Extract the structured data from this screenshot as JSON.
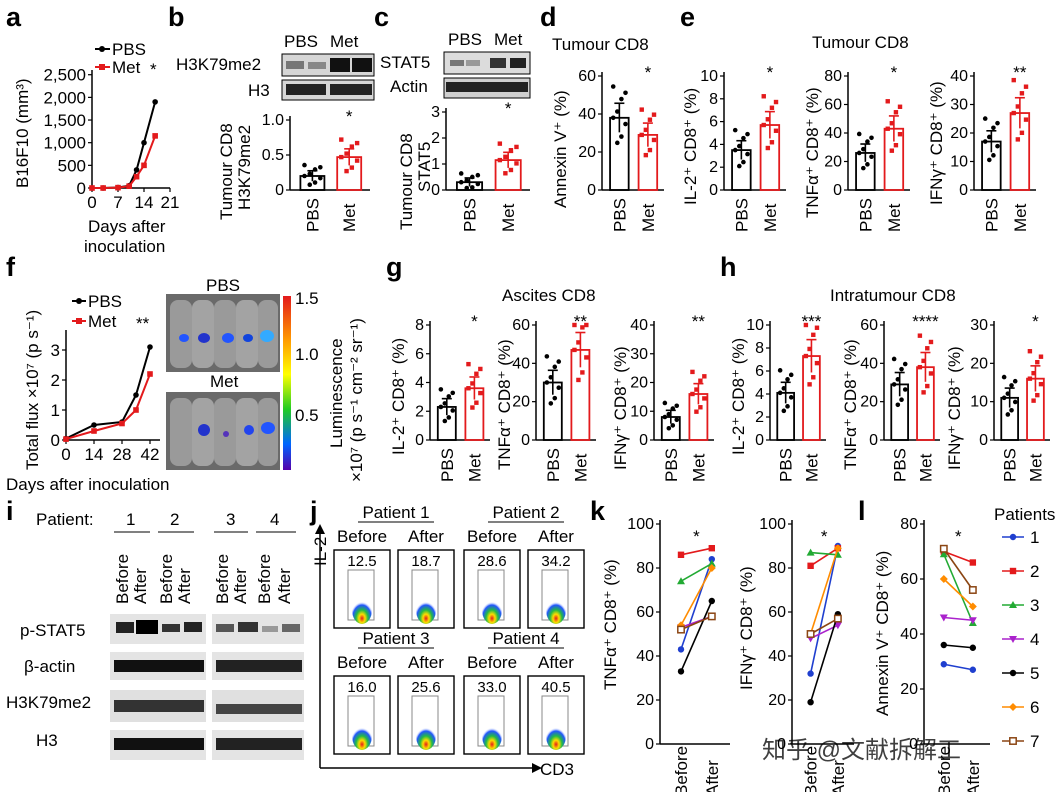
{
  "colors": {
    "pbs": "#000000",
    "met": "#e31a1c"
  },
  "panel_letters": [
    "a",
    "b",
    "c",
    "d",
    "e",
    "f",
    "g",
    "h",
    "i",
    "j",
    "k",
    "l"
  ],
  "panel_a": {
    "ylabel": "B16F10 (mm³)",
    "yticks": [
      "0",
      "500",
      "1,000",
      "1,500",
      "2,000",
      "2,500"
    ],
    "xticks": [
      "0",
      "7",
      "14",
      "21"
    ],
    "xlabel1": "Days after",
    "xlabel2": "inoculation",
    "legend": [
      "PBS",
      "Met"
    ],
    "sig": "*"
  },
  "panel_b": {
    "blot_header": [
      "PBS",
      "Met"
    ],
    "rows": [
      "H3K79me2",
      "H3"
    ],
    "ylabel1": "Tumour CD8",
    "ylabel2": "H3K79me2",
    "yticks": [
      "0",
      "0.5",
      "1.0"
    ],
    "groups": [
      "PBS",
      "Met"
    ],
    "sig": "*"
  },
  "panel_c": {
    "blot_header": [
      "PBS",
      "Met"
    ],
    "rows": [
      "STAT5",
      "Actin"
    ],
    "ylabel1": "Tumour CD8",
    "ylabel2": "STAT5",
    "yticks": [
      "0",
      "1",
      "2",
      "3"
    ],
    "groups": [
      "PBS",
      "Met"
    ],
    "sig": "*"
  },
  "panel_d": {
    "title": "Tumour CD8",
    "ylabel": "Annexin V⁺ (%)",
    "yticks": [
      "0",
      "20",
      "40",
      "60"
    ],
    "groups": [
      "PBS",
      "Met"
    ],
    "sig": "*"
  },
  "panel_e": {
    "title": "Tumour CD8",
    "plots": [
      {
        "ylabel": "IL-2⁺ CD8⁺ (%)",
        "yticks": [
          "0",
          "2",
          "4",
          "6",
          "8",
          "10"
        ],
        "sig": "*"
      },
      {
        "ylabel": "TNFα⁺ CD8⁺ (%)",
        "yticks": [
          "0",
          "20",
          "40",
          "60",
          "80"
        ],
        "sig": "*"
      },
      {
        "ylabel": "IFNγ⁺ CD8⁺ (%)",
        "yticks": [
          "0",
          "10",
          "20",
          "30",
          "40"
        ],
        "sig": "**"
      }
    ],
    "groups": [
      "PBS",
      "Met"
    ]
  },
  "panel_f": {
    "ylabel": "Total flux ×10⁷ (p s⁻¹)",
    "yticks": [
      "0",
      "1",
      "2",
      "3"
    ],
    "xticks": [
      "0",
      "14",
      "28",
      "42"
    ],
    "xlabel": "Days after inoculation",
    "legend": [
      "PBS",
      "Met"
    ],
    "sig": "**",
    "image_labels": [
      "PBS",
      "Met"
    ],
    "colorbar_ticks": [
      "1.5",
      "1.0",
      "0.5"
    ],
    "colorbar_label1": "Luminescence",
    "colorbar_label2": "×10⁷ (p s⁻¹ cm⁻² sr⁻¹)"
  },
  "panel_g": {
    "title": "Ascites CD8",
    "plots": [
      {
        "ylabel": "IL-2⁺ CD8⁺ (%)",
        "yticks": [
          "0",
          "2",
          "4",
          "6",
          "8"
        ],
        "sig": "*"
      },
      {
        "ylabel": "TNFα⁺ CD8⁺ (%)",
        "yticks": [
          "0",
          "20",
          "40",
          "60"
        ],
        "sig": "**"
      },
      {
        "ylabel": "IFNγ⁺ CD8⁺ (%)",
        "yticks": [
          "0",
          "10",
          "20",
          "30",
          "40"
        ],
        "sig": "**"
      }
    ],
    "groups": [
      "PBS",
      "Met"
    ]
  },
  "panel_h": {
    "title": "Intratumour CD8",
    "plots": [
      {
        "ylabel": "IL-2⁺ CD8⁺ (%)",
        "yticks": [
          "0",
          "2",
          "4",
          "6",
          "8",
          "10"
        ],
        "sig": "***"
      },
      {
        "ylabel": "TNFα⁺ CD8⁺ (%)",
        "yticks": [
          "0",
          "20",
          "40",
          "60"
        ],
        "sig": "****"
      },
      {
        "ylabel": "IFNγ⁺ CD8⁺ (%)",
        "yticks": [
          "0",
          "10",
          "20",
          "30"
        ],
        "sig": "*"
      }
    ],
    "groups": [
      "PBS",
      "Met"
    ]
  },
  "panel_i": {
    "patient_label": "Patient:",
    "patients": [
      "1",
      "2",
      "3",
      "4"
    ],
    "conditions": [
      "Before",
      "After"
    ],
    "rows": [
      "p-STAT5",
      "β-actin",
      "H3K79me2",
      "H3"
    ]
  },
  "panel_j": {
    "patients": [
      "Patient 1",
      "Patient 2",
      "Patient 3",
      "Patient 4"
    ],
    "conditions": [
      "Before",
      "After"
    ],
    "values": [
      "12.5",
      "18.7",
      "28.6",
      "34.2",
      "16.0",
      "25.6",
      "33.0",
      "40.5"
    ],
    "yaxis": "IL-2",
    "xaxis": "CD3"
  },
  "panel_k": {
    "plots": [
      {
        "ylabel": "TNFα⁺ CD8⁺ (%)",
        "yticks": [
          "0",
          "20",
          "40",
          "60",
          "80",
          "100"
        ],
        "sig": "*"
      },
      {
        "ylabel": "IFNγ⁺ CD8⁺ (%)",
        "yticks": [
          "0",
          "20",
          "40",
          "60",
          "80",
          "100"
        ],
        "sig": "*"
      }
    ],
    "xticks": [
      "Before",
      "After"
    ]
  },
  "panel_l": {
    "ylabel": "Annexin V⁺ CD8⁺ (%)",
    "yticks": [
      "0",
      "20",
      "40",
      "60",
      "80"
    ],
    "xticks": [
      "Before",
      "After"
    ],
    "sig": "*",
    "legend_title": "Patients",
    "patients": [
      "1",
      "2",
      "3",
      "4",
      "5",
      "6",
      "7"
    ]
  },
  "chart_data": [
    {
      "panel": "a",
      "type": "line",
      "xlabel": "Days after inoculation",
      "ylabel": "B16F10 (mm³)",
      "ylim": [
        0,
        2500
      ],
      "x": [
        0,
        3,
        7,
        10,
        12,
        14,
        17
      ],
      "series": [
        {
          "name": "PBS",
          "values": [
            0,
            0,
            10,
            50,
            400,
            1000,
            1900
          ]
        },
        {
          "name": "Met",
          "values": [
            0,
            0,
            8,
            40,
            250,
            500,
            1150
          ]
        }
      ]
    },
    {
      "panel": "b",
      "type": "bar",
      "title": "Tumour CD8 H3K79me2",
      "categories": [
        "PBS",
        "Met"
      ],
      "values": [
        0.2,
        0.47
      ],
      "ylim": [
        0,
        1.0
      ]
    },
    {
      "panel": "c",
      "type": "bar",
      "title": "Tumour CD8 STAT5",
      "categories": [
        "PBS",
        "Met"
      ],
      "values": [
        0.3,
        1.15
      ],
      "ylim": [
        0,
        3
      ]
    },
    {
      "panel": "d",
      "type": "bar",
      "title": "Tumour CD8",
      "ylabel": "Annexin V⁺ (%)",
      "categories": [
        "PBS",
        "Met"
      ],
      "values": [
        38,
        29
      ],
      "ylim": [
        0,
        60
      ]
    },
    {
      "panel": "e-1",
      "type": "bar",
      "ylabel": "IL-2⁺ CD8⁺ (%)",
      "categories": [
        "PBS",
        "Met"
      ],
      "values": [
        3.5,
        5.7
      ],
      "ylim": [
        0,
        10
      ]
    },
    {
      "panel": "e-2",
      "type": "bar",
      "ylabel": "TNFα⁺ CD8⁺ (%)",
      "categories": [
        "PBS",
        "Met"
      ],
      "values": [
        26,
        43
      ],
      "ylim": [
        0,
        80
      ]
    },
    {
      "panel": "e-3",
      "type": "bar",
      "ylabel": "IFNγ⁺ CD8⁺ (%)",
      "categories": [
        "PBS",
        "Met"
      ],
      "values": [
        17,
        27
      ],
      "ylim": [
        0,
        40
      ]
    },
    {
      "panel": "f",
      "type": "line",
      "xlabel": "Days after inoculation",
      "ylabel": "Total flux ×10⁷ (p s⁻¹)",
      "ylim": [
        0,
        3.5
      ],
      "x": [
        0,
        14,
        28,
        35,
        42
      ],
      "series": [
        {
          "name": "PBS",
          "values": [
            0.05,
            0.5,
            0.6,
            1.5,
            3.1
          ]
        },
        {
          "name": "Met",
          "values": [
            0.03,
            0.3,
            0.55,
            1.0,
            2.2
          ]
        }
      ]
    },
    {
      "panel": "g-1",
      "type": "bar",
      "ylabel": "IL-2⁺ CD8⁺ (%)",
      "categories": [
        "PBS",
        "Met"
      ],
      "values": [
        2.3,
        3.6
      ],
      "ylim": [
        0,
        8
      ]
    },
    {
      "panel": "g-2",
      "type": "bar",
      "ylabel": "TNFα⁺ CD8⁺ (%)",
      "categories": [
        "PBS",
        "Met"
      ],
      "values": [
        30,
        47
      ],
      "ylim": [
        0,
        60
      ]
    },
    {
      "panel": "g-3",
      "type": "bar",
      "ylabel": "IFNγ⁺ CD8⁺ (%)",
      "categories": [
        "PBS",
        "Met"
      ],
      "values": [
        8,
        16
      ],
      "ylim": [
        0,
        40
      ]
    },
    {
      "panel": "h-1",
      "type": "bar",
      "ylabel": "IL-2⁺ CD8⁺ (%)",
      "categories": [
        "PBS",
        "Met"
      ],
      "values": [
        4.1,
        7.3
      ],
      "ylim": [
        0,
        10
      ]
    },
    {
      "panel": "h-2",
      "type": "bar",
      "ylabel": "TNFα⁺ CD8⁺ (%)",
      "categories": [
        "PBS",
        "Met"
      ],
      "values": [
        29,
        38
      ],
      "ylim": [
        0,
        60
      ]
    },
    {
      "panel": "h-3",
      "type": "bar",
      "ylabel": "IFNγ⁺ CD8⁺ (%)",
      "categories": [
        "PBS",
        "Met"
      ],
      "values": [
        11,
        16
      ],
      "ylim": [
        0,
        30
      ]
    },
    {
      "panel": "k-1",
      "type": "line",
      "ylabel": "TNFα⁺ CD8⁺ (%)",
      "x": [
        "Before",
        "After"
      ],
      "ylim": [
        0,
        100
      ],
      "series": [
        {
          "name": "1",
          "values": [
            43,
            84
          ]
        },
        {
          "name": "2",
          "values": [
            86,
            89
          ]
        },
        {
          "name": "3",
          "values": [
            74,
            82
          ]
        },
        {
          "name": "4",
          "values": [
            53,
            58
          ]
        },
        {
          "name": "5",
          "values": [
            33,
            65
          ]
        },
        {
          "name": "6",
          "values": [
            54,
            80
          ]
        },
        {
          "name": "7",
          "values": [
            52,
            58
          ]
        }
      ]
    },
    {
      "panel": "k-2",
      "type": "line",
      "ylabel": "IFNγ⁺ CD8⁺ (%)",
      "x": [
        "Before",
        "After"
      ],
      "ylim": [
        0,
        100
      ],
      "series": [
        {
          "name": "1",
          "values": [
            32,
            90
          ]
        },
        {
          "name": "2",
          "values": [
            81,
            89
          ]
        },
        {
          "name": "3",
          "values": [
            87,
            86
          ]
        },
        {
          "name": "4",
          "values": [
            48,
            54
          ]
        },
        {
          "name": "5",
          "values": [
            19,
            59
          ]
        },
        {
          "name": "6",
          "values": [
            50,
            89
          ]
        },
        {
          "name": "7",
          "values": [
            50,
            57
          ]
        }
      ]
    },
    {
      "panel": "l",
      "type": "line",
      "ylabel": "Annexin V⁺ CD8⁺ (%)",
      "x": [
        "Before",
        "After"
      ],
      "ylim": [
        0,
        80
      ],
      "series": [
        {
          "name": "1",
          "values": [
            29,
            27
          ]
        },
        {
          "name": "2",
          "values": [
            70,
            66
          ]
        },
        {
          "name": "3",
          "values": [
            69,
            44
          ]
        },
        {
          "name": "4",
          "values": [
            46,
            45
          ]
        },
        {
          "name": "5",
          "values": [
            36,
            35
          ]
        },
        {
          "name": "6",
          "values": [
            60,
            50
          ]
        },
        {
          "name": "7",
          "values": [
            71,
            56
          ]
        }
      ]
    }
  ]
}
